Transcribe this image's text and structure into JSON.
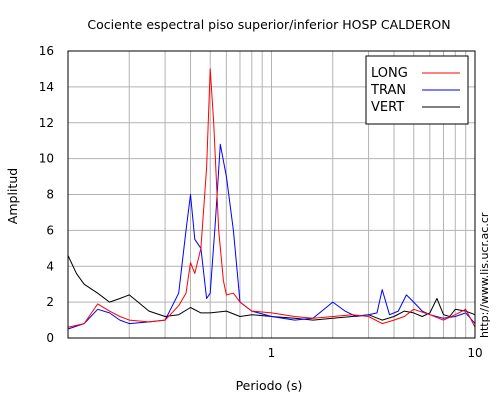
{
  "chart_data": {
    "type": "line",
    "title": "Cociente espectral piso superior/inferior  HOSP CALDERON",
    "xlabel": "Periodo (s)",
    "ylabel": "Amplitud",
    "xscale": "log",
    "xlim": [
      0.1,
      10
    ],
    "ylim": [
      0,
      16
    ],
    "x_ticks": [
      {
        "value": 1,
        "label": "1"
      },
      {
        "value": 10,
        "label": "10"
      }
    ],
    "y_ticks": [
      0,
      2,
      4,
      6,
      8,
      10,
      12,
      14,
      16
    ],
    "grid": true,
    "legend_position": "top-right",
    "watermark": "http://www.lis.ucr.ac.cr",
    "series": [
      {
        "name": "LONG",
        "color": "#ff0000",
        "x": [
          0.1,
          0.12,
          0.14,
          0.16,
          0.18,
          0.2,
          0.25,
          0.3,
          0.35,
          0.38,
          0.4,
          0.42,
          0.45,
          0.48,
          0.5,
          0.52,
          0.55,
          0.58,
          0.6,
          0.65,
          0.7,
          0.8,
          1.0,
          1.3,
          1.6,
          2.0,
          2.5,
          3.0,
          3.5,
          4.0,
          4.5,
          5.0,
          6.0,
          7.0,
          8.0,
          9.0,
          10.0
        ],
        "y": [
          0.6,
          0.8,
          1.9,
          1.5,
          1.2,
          1.0,
          0.9,
          1.0,
          1.8,
          2.5,
          4.2,
          3.6,
          5.0,
          9.5,
          15.0,
          12.0,
          6.0,
          3.2,
          2.4,
          2.5,
          2.0,
          1.5,
          1.4,
          1.2,
          1.1,
          1.2,
          1.3,
          1.2,
          0.8,
          1.0,
          1.2,
          1.6,
          1.3,
          1.0,
          1.3,
          1.6,
          0.6
        ]
      },
      {
        "name": "TRAN",
        "color": "#0000ff",
        "x": [
          0.1,
          0.12,
          0.14,
          0.16,
          0.18,
          0.2,
          0.25,
          0.3,
          0.35,
          0.38,
          0.4,
          0.42,
          0.45,
          0.48,
          0.5,
          0.53,
          0.56,
          0.6,
          0.65,
          0.7,
          0.8,
          1.0,
          1.3,
          1.6,
          2.0,
          2.3,
          2.6,
          3.0,
          3.3,
          3.5,
          3.8,
          4.2,
          4.6,
          5.0,
          5.5,
          6.0,
          7.0,
          8.0,
          9.0,
          10.0
        ],
        "y": [
          0.5,
          0.8,
          1.6,
          1.4,
          1.0,
          0.8,
          0.9,
          1.0,
          2.5,
          6.0,
          8.0,
          5.5,
          5.0,
          2.2,
          2.5,
          6.5,
          10.8,
          9.0,
          6.0,
          2.0,
          1.5,
          1.2,
          1.0,
          1.1,
          2.0,
          1.5,
          1.2,
          1.3,
          1.4,
          2.7,
          1.3,
          1.5,
          2.4,
          2.0,
          1.5,
          1.3,
          1.1,
          1.2,
          1.4,
          0.8
        ]
      },
      {
        "name": "VERT",
        "color": "#000000",
        "x": [
          0.1,
          0.11,
          0.12,
          0.14,
          0.16,
          0.18,
          0.2,
          0.25,
          0.3,
          0.35,
          0.4,
          0.45,
          0.5,
          0.6,
          0.7,
          0.8,
          1.0,
          1.3,
          1.6,
          2.0,
          2.5,
          3.0,
          3.5,
          4.0,
          4.5,
          5.0,
          5.5,
          6.0,
          6.5,
          7.0,
          7.5,
          8.0,
          9.0,
          10.0
        ],
        "y": [
          4.6,
          3.6,
          3.0,
          2.5,
          2.0,
          2.2,
          2.4,
          1.5,
          1.2,
          1.3,
          1.7,
          1.4,
          1.4,
          1.5,
          1.2,
          1.3,
          1.2,
          1.1,
          1.0,
          1.1,
          1.2,
          1.3,
          1.0,
          1.2,
          1.5,
          1.4,
          1.2,
          1.4,
          2.2,
          1.3,
          1.2,
          1.6,
          1.5,
          1.3
        ]
      }
    ]
  }
}
